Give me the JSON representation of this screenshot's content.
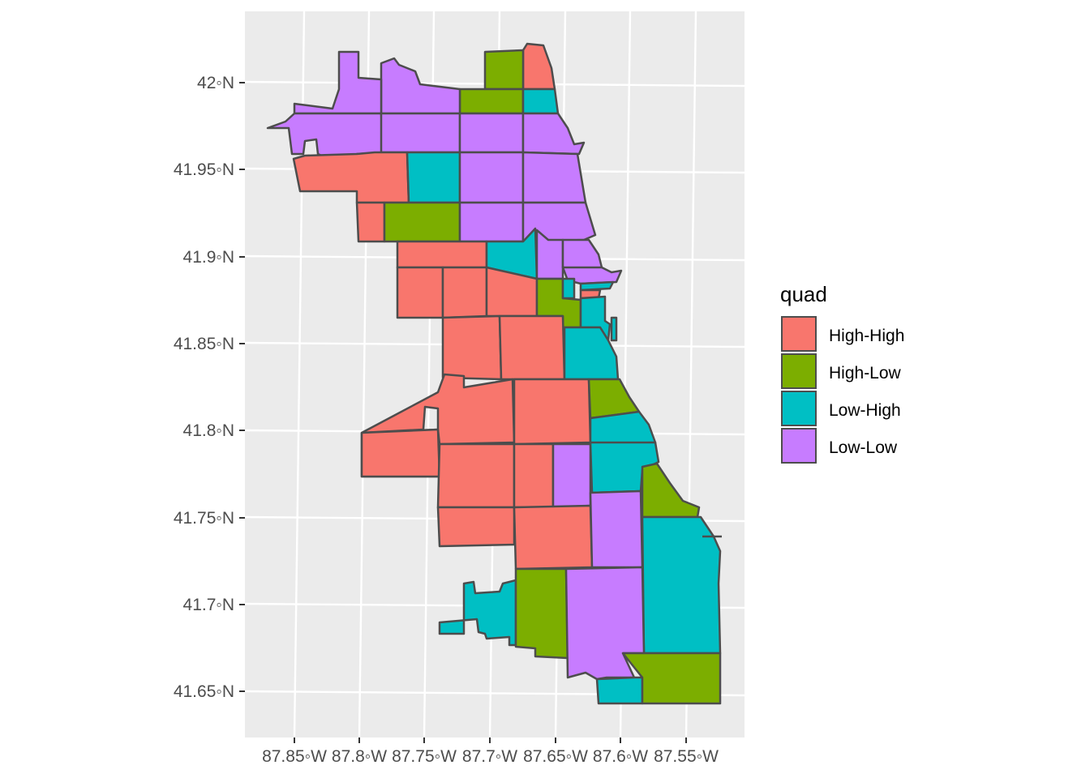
{
  "map": {
    "y_labels": [
      "42◦N",
      "41.95◦N",
      "41.9◦N",
      "41.85◦N",
      "41.8◦N",
      "41.75◦N",
      "41.7◦N",
      "41.65◦N"
    ],
    "x_labels": [
      "87.85◦W",
      "87.8◦W",
      "87.75◦W",
      "87.7◦W",
      "87.65◦W",
      "87.6◦W",
      "87.55◦W"
    ],
    "colors": {
      "panel_background": "#ebebeb",
      "gridline": "#ffffff",
      "border": "#4d4d4d",
      "high_high": "#f8766d",
      "high_low": "#7cae00",
      "low_high": "#00bfc4",
      "low_low": "#c77cff"
    }
  },
  "legend": {
    "title": "quad",
    "items": [
      {
        "label": "High-High",
        "color": "#f8766d"
      },
      {
        "label": "High-Low",
        "color": "#7cae00"
      },
      {
        "label": "Low-High",
        "color": "#00bfc4"
      },
      {
        "label": "Low-Low",
        "color": "#c77cff"
      }
    ]
  }
}
